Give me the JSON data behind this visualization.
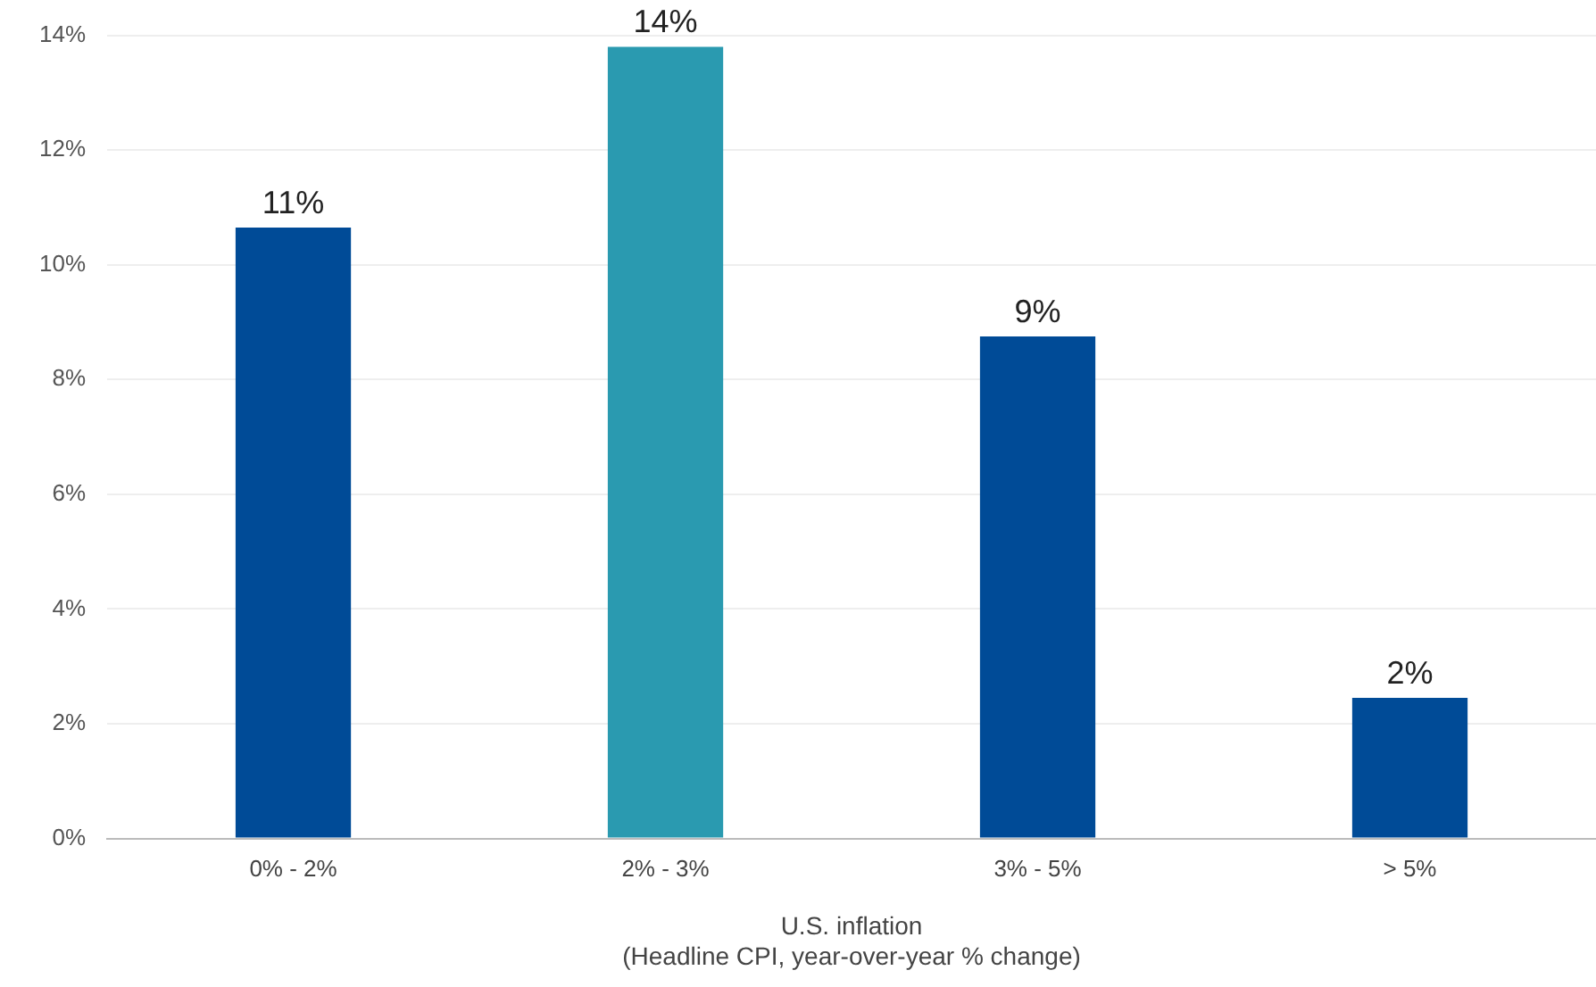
{
  "chart_data": {
    "type": "bar",
    "xlabel": "U.S. inflation\n(Headline CPI, year-over-year % change)",
    "categories": [
      "0% - 2%",
      "2% - 3%",
      "3% - 5%",
      "> 5%"
    ],
    "values": [
      10.65,
      13.8,
      8.75,
      2.45
    ],
    "colors": [
      "#004b97",
      "#2a9ab0",
      "#004b97",
      "#004b97"
    ],
    "value_labels": [
      "11%",
      "14%",
      "9%",
      "2%"
    ],
    "ylim": [
      0,
      14
    ],
    "yticks": [
      {
        "value": 0,
        "label": "0%"
      },
      {
        "value": 2,
        "label": "2%"
      },
      {
        "value": 4,
        "label": "4%"
      },
      {
        "value": 6,
        "label": "6%"
      },
      {
        "value": 8,
        "label": "8%"
      },
      {
        "value": 10,
        "label": "10%"
      },
      {
        "value": 12,
        "label": "12%"
      },
      {
        "value": 14,
        "label": "14%"
      }
    ],
    "grid": "y",
    "legend": false
  }
}
